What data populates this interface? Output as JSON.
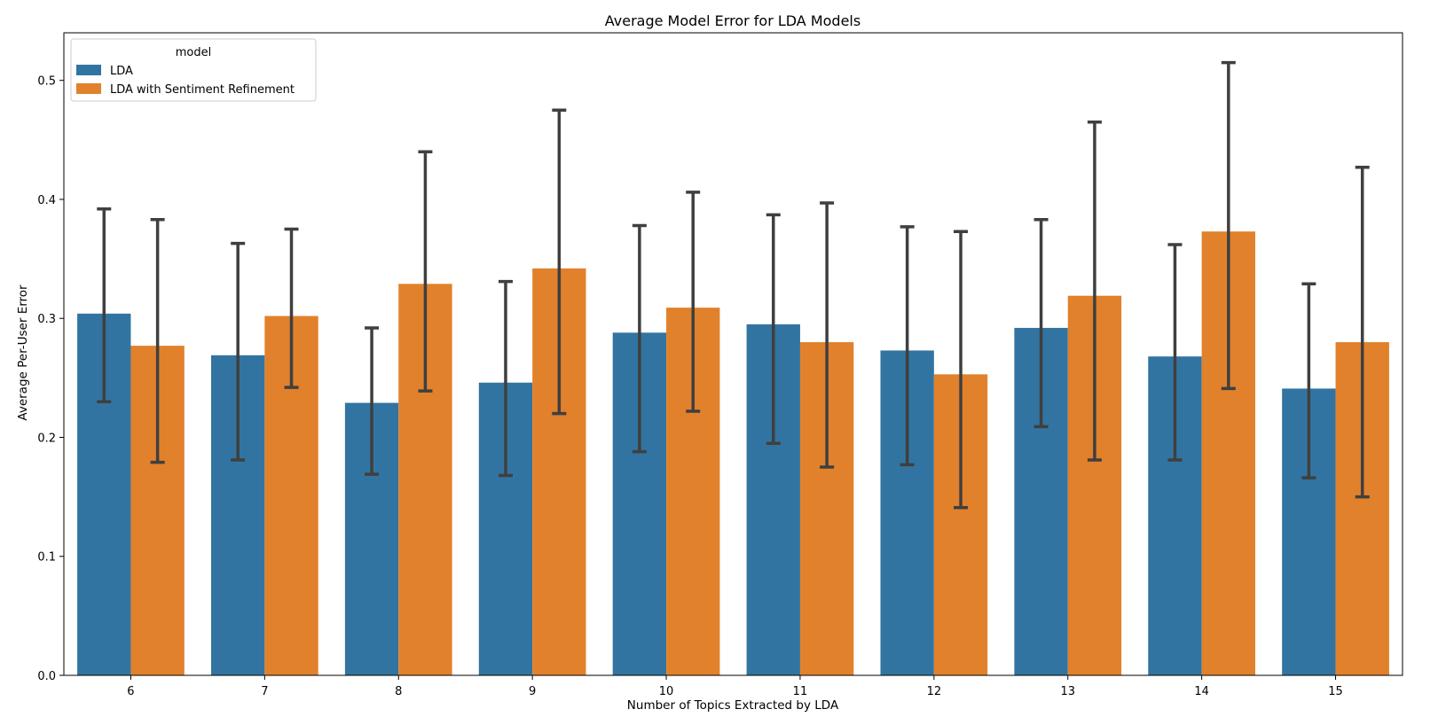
{
  "chart_data": {
    "type": "bar",
    "title": "Average Model Error for LDA Models",
    "xlabel": "Number of Topics Extracted by LDA",
    "ylabel": "Average Per-User Error",
    "categories": [
      "6",
      "7",
      "8",
      "9",
      "10",
      "11",
      "12",
      "13",
      "14",
      "15"
    ],
    "ylim": [
      0,
      0.54
    ],
    "yticks": [
      0.0,
      0.1,
      0.2,
      0.3,
      0.4,
      0.5
    ],
    "ytick_labels": [
      "0.0",
      "0.1",
      "0.2",
      "0.3",
      "0.4",
      "0.5"
    ],
    "legend": {
      "title": "model",
      "placement": "top-left"
    },
    "grid": false,
    "series": [
      {
        "name": "LDA",
        "color": "#3274a1",
        "values": [
          0.304,
          0.269,
          0.229,
          0.246,
          0.288,
          0.295,
          0.273,
          0.292,
          0.268,
          0.241
        ],
        "ci_low": [
          0.23,
          0.181,
          0.169,
          0.168,
          0.188,
          0.195,
          0.177,
          0.209,
          0.181,
          0.166
        ],
        "ci_high": [
          0.392,
          0.363,
          0.292,
          0.331,
          0.378,
          0.387,
          0.377,
          0.383,
          0.362,
          0.329
        ]
      },
      {
        "name": "LDA with Sentiment Refinement",
        "color": "#e1812c",
        "values": [
          0.277,
          0.302,
          0.329,
          0.342,
          0.309,
          0.28,
          0.253,
          0.319,
          0.373,
          0.28
        ],
        "ci_low": [
          0.179,
          0.242,
          0.239,
          0.22,
          0.222,
          0.175,
          0.141,
          0.181,
          0.241,
          0.15
        ],
        "ci_high": [
          0.383,
          0.375,
          0.44,
          0.475,
          0.406,
          0.397,
          0.373,
          0.465,
          0.515,
          0.427
        ]
      }
    ],
    "errorbar_color": "#3f3f3f"
  }
}
